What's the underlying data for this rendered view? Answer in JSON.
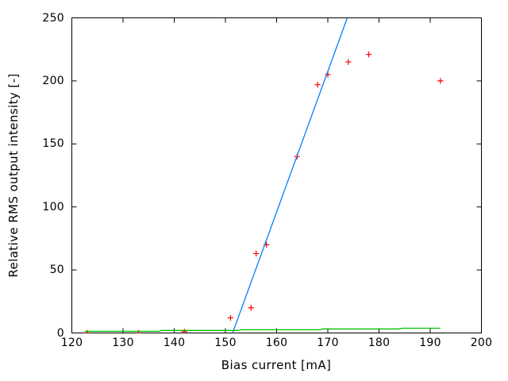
{
  "figure": {
    "background": "#ffffff",
    "axis_color": "#000000"
  },
  "chart_data": {
    "type": "scatter",
    "title": "",
    "xlabel": "Bias current [mA]",
    "ylabel": "Relative RMS output intensity [-]",
    "xlim": [
      120,
      200
    ],
    "ylim": [
      0,
      250
    ],
    "x_ticks": [
      120,
      130,
      140,
      150,
      160,
      170,
      180,
      190,
      200
    ],
    "y_ticks": [
      0,
      50,
      100,
      150,
      200,
      250
    ],
    "grid": false,
    "legend": "none",
    "series": [
      {
        "name": "measured-rms-points",
        "type": "points",
        "marker": "plus",
        "color": "#ff0000",
        "points": [
          [
            123,
            0
          ],
          [
            133,
            0
          ],
          [
            142,
            1
          ],
          [
            151,
            12
          ],
          [
            155,
            20
          ],
          [
            156,
            63
          ],
          [
            158,
            70
          ],
          [
            164,
            140
          ],
          [
            168,
            197
          ],
          [
            170,
            205
          ],
          [
            174,
            215
          ],
          [
            178,
            221
          ],
          [
            192,
            200
          ]
        ]
      },
      {
        "name": "linear-fit-line",
        "type": "line",
        "color": "#0080ff",
        "points": [
          [
            151.4,
            0
          ],
          [
            173.8,
            250
          ]
        ]
      },
      {
        "name": "noise-floor-line",
        "type": "line",
        "color": "#00c000",
        "points": [
          [
            122.5,
            1.3
          ],
          [
            137,
            1.3
          ],
          [
            137.5,
            2.0
          ],
          [
            152.5,
            2.0
          ],
          [
            153,
            2.6
          ],
          [
            168.5,
            2.6
          ],
          [
            169,
            3.2
          ],
          [
            184,
            3.2
          ],
          [
            184.5,
            3.8
          ],
          [
            192,
            3.8
          ]
        ]
      }
    ]
  }
}
